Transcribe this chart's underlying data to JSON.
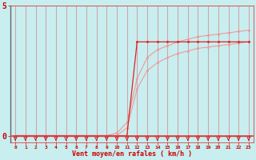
{
  "background_color": "#c8eef0",
  "grid_color": "#dd4444",
  "line_color_dark": "#dd2222",
  "line_color_light": "#ee9999",
  "xlabel": "Vent moyen/en rafales ( km/h )",
  "xlabel_color": "#cc0000",
  "xlabel_fontsize": 6.0,
  "ytick_values": [
    0,
    5
  ],
  "ytick_labels": [
    "0",
    "5"
  ],
  "ylim": [
    0,
    5
  ],
  "xlim": [
    0,
    23
  ],
  "xtick_values": [
    0,
    1,
    2,
    3,
    4,
    5,
    6,
    7,
    8,
    9,
    10,
    11,
    12,
    13,
    14,
    15,
    16,
    17,
    18,
    19,
    20,
    21,
    22,
    23
  ],
  "marker_size": 1.8,
  "tick_color": "#cc0000",
  "line_y0_dark": [
    0,
    0,
    0,
    0,
    0,
    0,
    0,
    0,
    0,
    0,
    0,
    0,
    3.6,
    3.6,
    3.6,
    3.6,
    3.6,
    3.6,
    3.6,
    3.6,
    3.6,
    3.6,
    3.6,
    3.6
  ],
  "line_y0_zero": [
    0,
    0,
    0,
    0,
    0,
    0,
    0,
    0,
    0,
    0,
    0,
    0,
    0,
    0,
    0,
    0,
    0,
    0,
    0,
    0,
    0,
    0,
    0,
    0
  ],
  "line_y1_light": [
    0,
    0,
    0,
    0,
    0,
    0,
    0,
    0,
    0,
    0,
    0,
    0.3,
    1.8,
    2.5,
    2.8,
    3.0,
    3.15,
    3.25,
    3.35,
    3.4,
    3.45,
    3.5,
    3.55,
    3.6
  ],
  "line_y2_light": [
    0,
    0,
    0,
    0,
    0,
    0,
    0,
    0,
    0,
    0,
    0.1,
    0.5,
    2.2,
    3.0,
    3.3,
    3.45,
    3.6,
    3.7,
    3.8,
    3.85,
    3.9,
    3.95,
    4.0,
    4.05
  ]
}
